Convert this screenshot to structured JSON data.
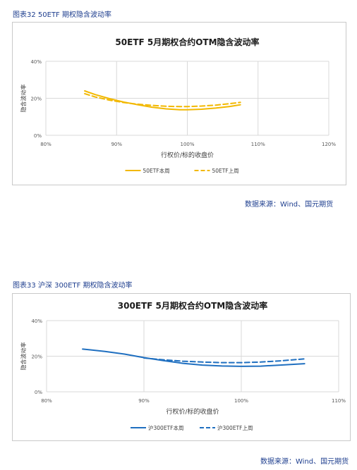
{
  "figure1": {
    "caption": "图表32 50ETF 期权隐含波动率",
    "source": "数据来源：Wind、国元期货"
  },
  "figure2": {
    "caption": "图表33 沪深 300ETF 期权隐含波动率",
    "source": "数据来源：Wind、国元期货"
  },
  "colors": {
    "fig1_line": "#f2b800",
    "fig2_line": "#1f6fc0",
    "grid": "#d9d9d9",
    "caption": "#1f3f8f"
  },
  "chart_data": [
    {
      "type": "line",
      "title": "50ETF  5月期权合约OTM隐含波动率",
      "xlabel": "行权价/标的收盘价",
      "ylabel": "隐含波动率",
      "xlim": [
        0.8,
        1.2
      ],
      "ylim": [
        0,
        0.4
      ],
      "x_ticks": [
        "80%",
        "90%",
        "100%",
        "110%",
        "120%"
      ],
      "y_ticks": [
        "0%",
        "20%",
        "40%"
      ],
      "grid": true,
      "legend": "bottom",
      "series": [
        {
          "name": "50ETF本周",
          "dash": false,
          "x": [
            0.855,
            0.87,
            0.89,
            0.91,
            0.93,
            0.95,
            0.97,
            0.99,
            1.0,
            1.02,
            1.04,
            1.06,
            1.075
          ],
          "y": [
            0.24,
            0.22,
            0.198,
            0.18,
            0.165,
            0.152,
            0.143,
            0.138,
            0.138,
            0.141,
            0.147,
            0.156,
            0.165
          ]
        },
        {
          "name": "50ETF上周",
          "dash": true,
          "x": [
            0.855,
            0.87,
            0.89,
            0.91,
            0.93,
            0.95,
            0.97,
            0.99,
            1.0,
            1.02,
            1.04,
            1.06,
            1.075
          ],
          "y": [
            0.225,
            0.207,
            0.19,
            0.177,
            0.168,
            0.162,
            0.157,
            0.155,
            0.155,
            0.158,
            0.163,
            0.171,
            0.178
          ]
        }
      ]
    },
    {
      "type": "line",
      "title": "300ETF  5月期权合约OTM隐含波动率",
      "xlabel": "行权价/标的收盘价",
      "ylabel": "隐含波动率",
      "xlim": [
        0.8,
        1.1
      ],
      "ylim": [
        0,
        0.4
      ],
      "x_ticks": [
        "80%",
        "90%",
        "100%",
        "110%"
      ],
      "y_ticks": [
        "0%",
        "20%",
        "40%"
      ],
      "grid": true,
      "legend": "bottom",
      "series": [
        {
          "name": "沪300ETF本周",
          "dash": false,
          "x": [
            0.837,
            0.86,
            0.88,
            0.9,
            0.92,
            0.94,
            0.96,
            0.98,
            1.0,
            1.02,
            1.04,
            1.065
          ],
          "y": [
            0.24,
            0.227,
            0.212,
            0.192,
            0.175,
            0.16,
            0.15,
            0.145,
            0.143,
            0.144,
            0.15,
            0.158
          ]
        },
        {
          "name": "沪300ETF上周",
          "dash": true,
          "x": [
            0.9,
            0.92,
            0.94,
            0.96,
            0.98,
            1.0,
            1.02,
            1.04,
            1.065
          ],
          "y": [
            0.19,
            0.18,
            0.172,
            0.167,
            0.164,
            0.164,
            0.167,
            0.174,
            0.185
          ]
        }
      ]
    }
  ]
}
